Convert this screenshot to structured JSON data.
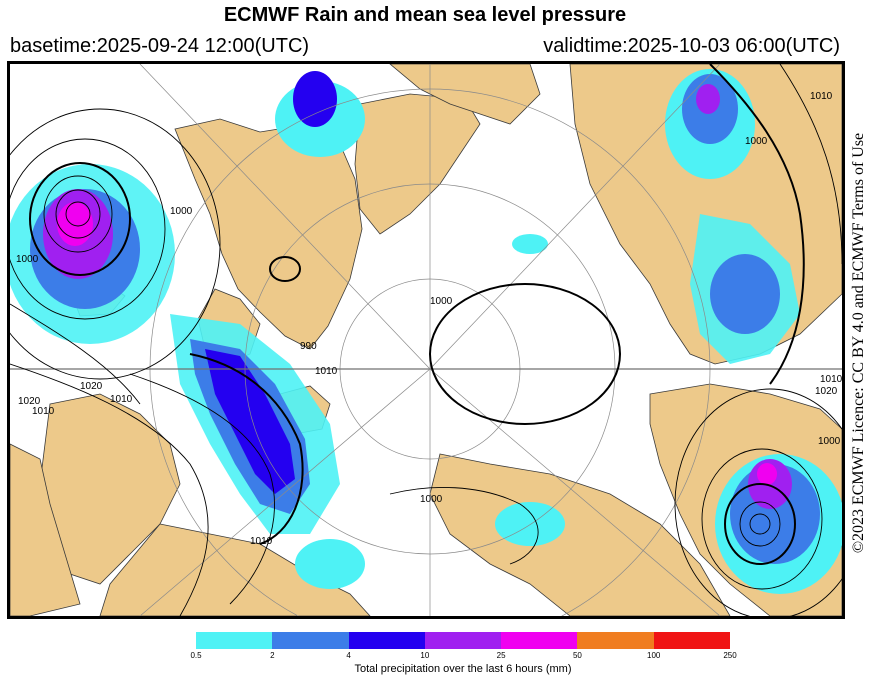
{
  "header": {
    "title": "ECMWF Rain and mean sea level pressure",
    "basetime": "basetime:2025-09-24 12:00(UTC)",
    "validtime": "validtime:2025-10-03 06:00(UTC)"
  },
  "credit": "©2023 ECMWF Licence: CC BY 4.0 and ECMWF Terms of Use",
  "map": {
    "colors": {
      "land": "#edc98a",
      "ocean": "#ffffff",
      "contour": "#000000",
      "graticule": "#8a8a8a"
    },
    "isobar_labels": [
      "1000",
      "1020",
      "1010",
      "1020",
      "1010",
      "1000",
      "990",
      "1010",
      "1000",
      "1000",
      "1000",
      "1010",
      "1000",
      "1020",
      "1010",
      "1010"
    ]
  },
  "legend": {
    "title": "Total precipitation over the last 6 hours (mm)",
    "tick_labels": [
      "0.5",
      "2",
      "4",
      "10",
      "25",
      "50",
      "100",
      "250"
    ],
    "colors": [
      "#4ef2f5",
      "#3c7de8",
      "#2400f0",
      "#a020f0",
      "#f000f0",
      "#f07d20",
      "#f01414"
    ]
  }
}
